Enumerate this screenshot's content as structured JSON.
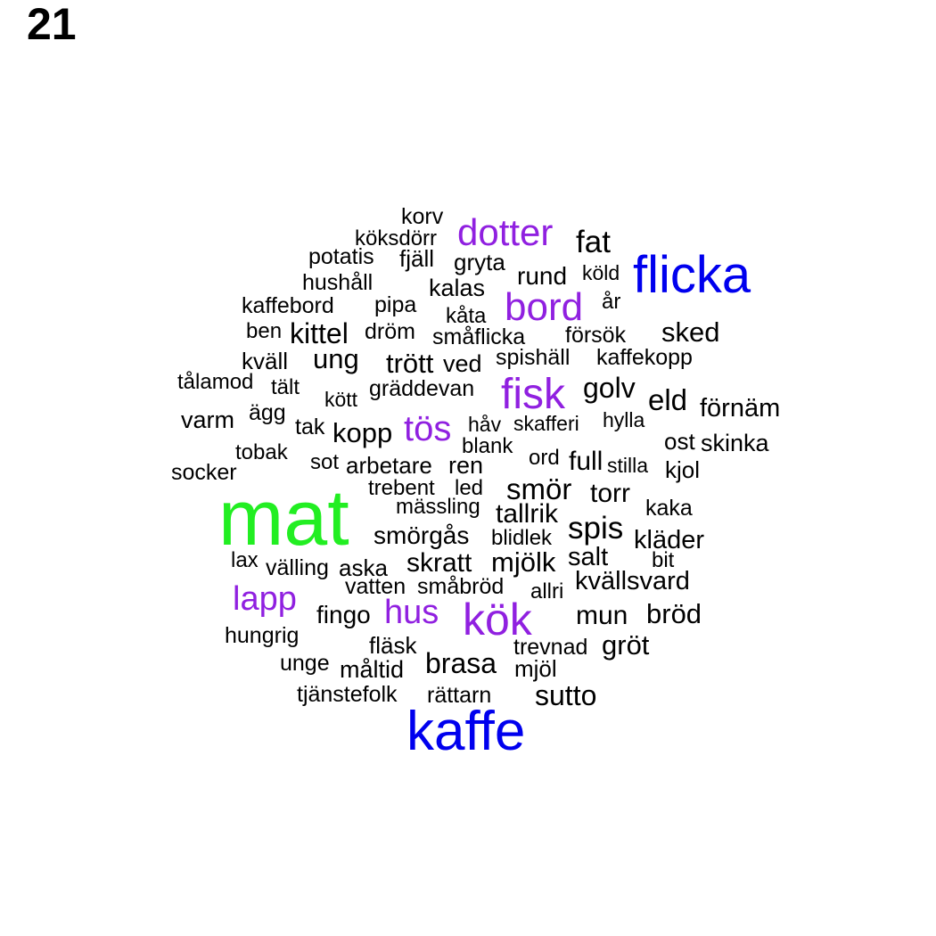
{
  "page_number": "21",
  "colors": {
    "green": "#22ee22",
    "blue": "#0000ee",
    "purple": "#9020e0",
    "black": "#000000"
  },
  "words": [
    {
      "text": "mat",
      "color": "green"
    },
    {
      "text": "kaffe",
      "color": "blue"
    },
    {
      "text": "flicka",
      "color": "blue"
    },
    {
      "text": "kök",
      "color": "purple"
    },
    {
      "text": "bord",
      "color": "purple"
    },
    {
      "text": "dotter",
      "color": "purple"
    },
    {
      "text": "fisk",
      "color": "purple"
    },
    {
      "text": "tös",
      "color": "purple"
    },
    {
      "text": "lapp",
      "color": "purple"
    },
    {
      "text": "hus",
      "color": "purple"
    },
    {
      "text": "korv",
      "color": "black"
    },
    {
      "text": "köksdörr",
      "color": "black"
    },
    {
      "text": "fat",
      "color": "black"
    },
    {
      "text": "potatis",
      "color": "black"
    },
    {
      "text": "fjäll",
      "color": "black"
    },
    {
      "text": "gryta",
      "color": "black"
    },
    {
      "text": "rund",
      "color": "black"
    },
    {
      "text": "köld",
      "color": "black"
    },
    {
      "text": "hushåll",
      "color": "black"
    },
    {
      "text": "kalas",
      "color": "black"
    },
    {
      "text": "kaffebord",
      "color": "black"
    },
    {
      "text": "pipa",
      "color": "black"
    },
    {
      "text": "år",
      "color": "black"
    },
    {
      "text": "kåta",
      "color": "black"
    },
    {
      "text": "ben",
      "color": "black"
    },
    {
      "text": "kittel",
      "color": "black"
    },
    {
      "text": "dröm",
      "color": "black"
    },
    {
      "text": "småflicka",
      "color": "black"
    },
    {
      "text": "försök",
      "color": "black"
    },
    {
      "text": "sked",
      "color": "black"
    },
    {
      "text": "ung",
      "color": "black"
    },
    {
      "text": "kväll",
      "color": "black"
    },
    {
      "text": "trött",
      "color": "black"
    },
    {
      "text": "ved",
      "color": "black"
    },
    {
      "text": "spishäll",
      "color": "black"
    },
    {
      "text": "kaffekopp",
      "color": "black"
    },
    {
      "text": "tålamod",
      "color": "black"
    },
    {
      "text": "tält",
      "color": "black"
    },
    {
      "text": "kött",
      "color": "black"
    },
    {
      "text": "gräddevan",
      "color": "black"
    },
    {
      "text": "golv",
      "color": "black"
    },
    {
      "text": "eld",
      "color": "black"
    },
    {
      "text": "förnäm",
      "color": "black"
    },
    {
      "text": "varm",
      "color": "black"
    },
    {
      "text": "ägg",
      "color": "black"
    },
    {
      "text": "tak",
      "color": "black"
    },
    {
      "text": "kopp",
      "color": "black"
    },
    {
      "text": "håv",
      "color": "black"
    },
    {
      "text": "skafferi",
      "color": "black"
    },
    {
      "text": "hylla",
      "color": "black"
    },
    {
      "text": "ost",
      "color": "black"
    },
    {
      "text": "skinka",
      "color": "black"
    },
    {
      "text": "tobak",
      "color": "black"
    },
    {
      "text": "blank",
      "color": "black"
    },
    {
      "text": "socker",
      "color": "black"
    },
    {
      "text": "sot",
      "color": "black"
    },
    {
      "text": "arbetare",
      "color": "black"
    },
    {
      "text": "ren",
      "color": "black"
    },
    {
      "text": "ord",
      "color": "black"
    },
    {
      "text": "full",
      "color": "black"
    },
    {
      "text": "stilla",
      "color": "black"
    },
    {
      "text": "kjol",
      "color": "black"
    },
    {
      "text": "trebent",
      "color": "black"
    },
    {
      "text": "led",
      "color": "black"
    },
    {
      "text": "smör",
      "color": "black"
    },
    {
      "text": "torr",
      "color": "black"
    },
    {
      "text": "mässling",
      "color": "black"
    },
    {
      "text": "tallrik",
      "color": "black"
    },
    {
      "text": "kaka",
      "color": "black"
    },
    {
      "text": "smörgås",
      "color": "black"
    },
    {
      "text": "blidlek",
      "color": "black"
    },
    {
      "text": "spis",
      "color": "black"
    },
    {
      "text": "kläder",
      "color": "black"
    },
    {
      "text": "lax",
      "color": "black"
    },
    {
      "text": "välling",
      "color": "black"
    },
    {
      "text": "aska",
      "color": "black"
    },
    {
      "text": "skratt",
      "color": "black"
    },
    {
      "text": "mjölk",
      "color": "black"
    },
    {
      "text": "salt",
      "color": "black"
    },
    {
      "text": "bit",
      "color": "black"
    },
    {
      "text": "vatten",
      "color": "black"
    },
    {
      "text": "småbröd",
      "color": "black"
    },
    {
      "text": "allri",
      "color": "black"
    },
    {
      "text": "kvällsvard",
      "color": "black"
    },
    {
      "text": "fingo",
      "color": "black"
    },
    {
      "text": "mun",
      "color": "black"
    },
    {
      "text": "bröd",
      "color": "black"
    },
    {
      "text": "hungrig",
      "color": "black"
    },
    {
      "text": "fläsk",
      "color": "black"
    },
    {
      "text": "trevnad",
      "color": "black"
    },
    {
      "text": "gröt",
      "color": "black"
    },
    {
      "text": "unge",
      "color": "black"
    },
    {
      "text": "måltid",
      "color": "black"
    },
    {
      "text": "brasa",
      "color": "black"
    },
    {
      "text": "mjöl",
      "color": "black"
    },
    {
      "text": "tjänstefolk",
      "color": "black"
    },
    {
      "text": "rättarn",
      "color": "black"
    },
    {
      "text": "sutto",
      "color": "black"
    }
  ]
}
